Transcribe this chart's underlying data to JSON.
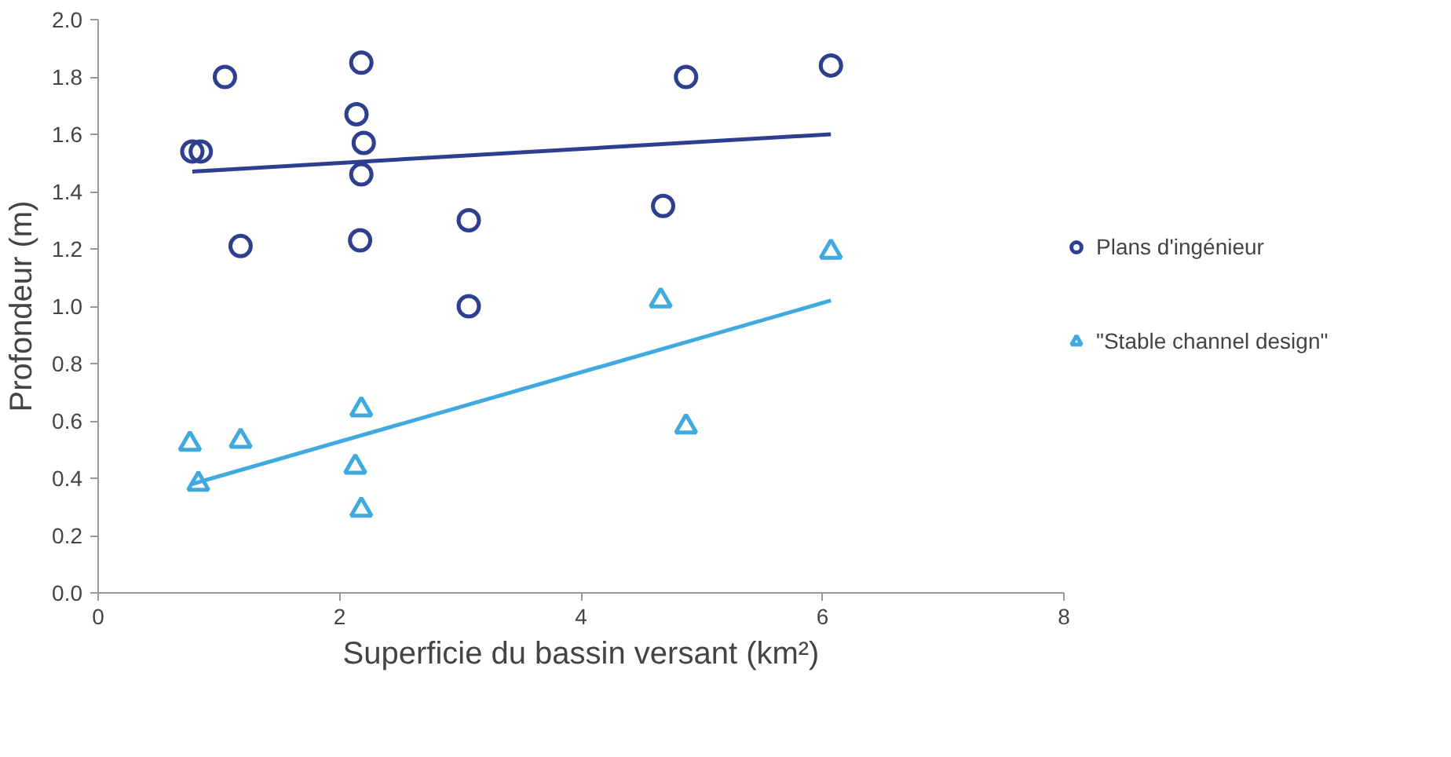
{
  "chart_data": {
    "type": "scatter",
    "xlabel": "Superficie du bassin versant (km²)",
    "ylabel": "Profondeur (m)",
    "xlim": [
      0,
      8
    ],
    "xticks": [
      0,
      2,
      4,
      6,
      8
    ],
    "ylim": [
      0,
      2
    ],
    "yticks": [
      {
        "value": 0,
        "label": "0.0"
      },
      {
        "value": 0.2,
        "label": "0.2"
      },
      {
        "value": 0.4,
        "label": "0.4"
      },
      {
        "value": 0.6,
        "label": "0.6"
      },
      {
        "value": 0.8,
        "label": "0.8"
      },
      {
        "value": 1.0,
        "label": "1.0"
      },
      {
        "value": 1.2,
        "label": "1.2"
      },
      {
        "value": 1.4,
        "label": "1.4"
      },
      {
        "value": 1.6,
        "label": "1.6"
      },
      {
        "value": 1.8,
        "label": "1.8"
      },
      {
        "value": 2.0,
        "label": "2.0"
      }
    ],
    "grid": false,
    "legend": "right",
    "series": [
      {
        "name": "Plans d'ingénieur",
        "color": "#2e3f8f",
        "marker": "circle",
        "x": [
          0.78,
          0.85,
          1.05,
          1.18,
          2.18,
          2.14,
          2.2,
          2.18,
          2.17,
          3.07,
          3.07,
          4.68,
          4.87,
          6.07
        ],
        "values": [
          1.54,
          1.54,
          1.8,
          1.21,
          1.85,
          1.67,
          1.57,
          1.46,
          1.23,
          1.3,
          1.0,
          1.35,
          1.8,
          1.84
        ]
      },
      {
        "name": "\"Stable channel design\"",
        "color": "#3fa9e0",
        "marker": "triangle",
        "x": [
          0.76,
          0.83,
          1.18,
          2.18,
          2.13,
          2.18,
          4.66,
          4.87,
          6.07
        ],
        "values": [
          0.52,
          0.38,
          0.53,
          0.64,
          0.44,
          0.29,
          1.02,
          0.58,
          1.19
        ]
      },
      {
        "type": "line",
        "color": "#2e3f8f",
        "marker": "none",
        "x": [
          0.78,
          6.07
        ],
        "values": [
          1.47,
          1.6
        ]
      },
      {
        "type": "line",
        "color": "#3fa9e0",
        "marker": "none",
        "x": [
          0.78,
          6.07
        ],
        "values": [
          0.38,
          1.02
        ]
      }
    ]
  }
}
